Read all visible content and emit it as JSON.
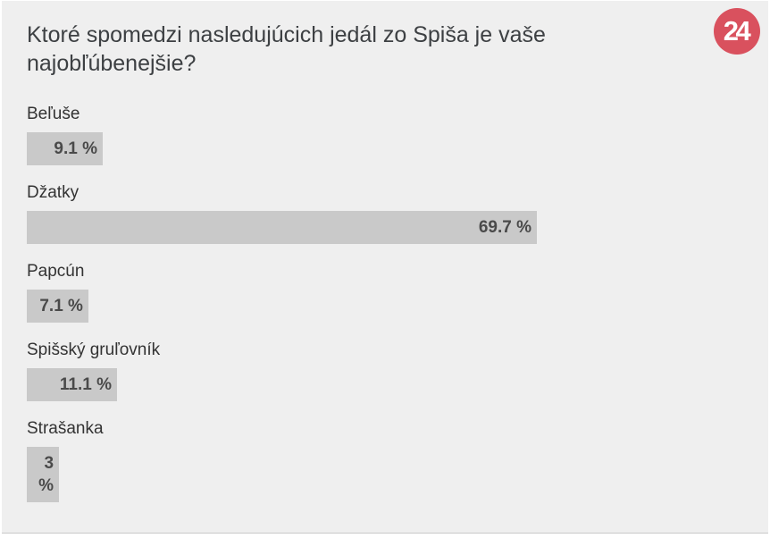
{
  "page": {
    "panel_background": "#efefef",
    "panel_border_color": "#c9c9c9"
  },
  "header": {
    "question": "Ktoré spomedzi nasledujúcich jedál zo Spiša je vaše najobľúbenejšie?",
    "logo": {
      "text": "24",
      "background_color": "#d9515e",
      "text_color": "#ffffff"
    }
  },
  "chart_data": {
    "type": "bar",
    "orientation": "horizontal",
    "title": "Ktoré spomedzi nasledujúcich jedál zo Spiša je vaše najobľúbenejšie?",
    "categories": [
      "Beľuše",
      "Džatky",
      "Papcún",
      "Spišský gruľovník",
      "Strašanka"
    ],
    "values": [
      9.1,
      69.7,
      7.1,
      11.1,
      3
    ],
    "value_labels": [
      "9.1 %",
      "69.7 %",
      "7.1 %",
      "11.1 %",
      "3 %"
    ],
    "xlim": [
      0,
      100
    ],
    "grid": false,
    "legend": false,
    "bar_color": "#c9c9c9",
    "category_label_color": "#333333",
    "value_label_color": "#4a4a4a"
  }
}
